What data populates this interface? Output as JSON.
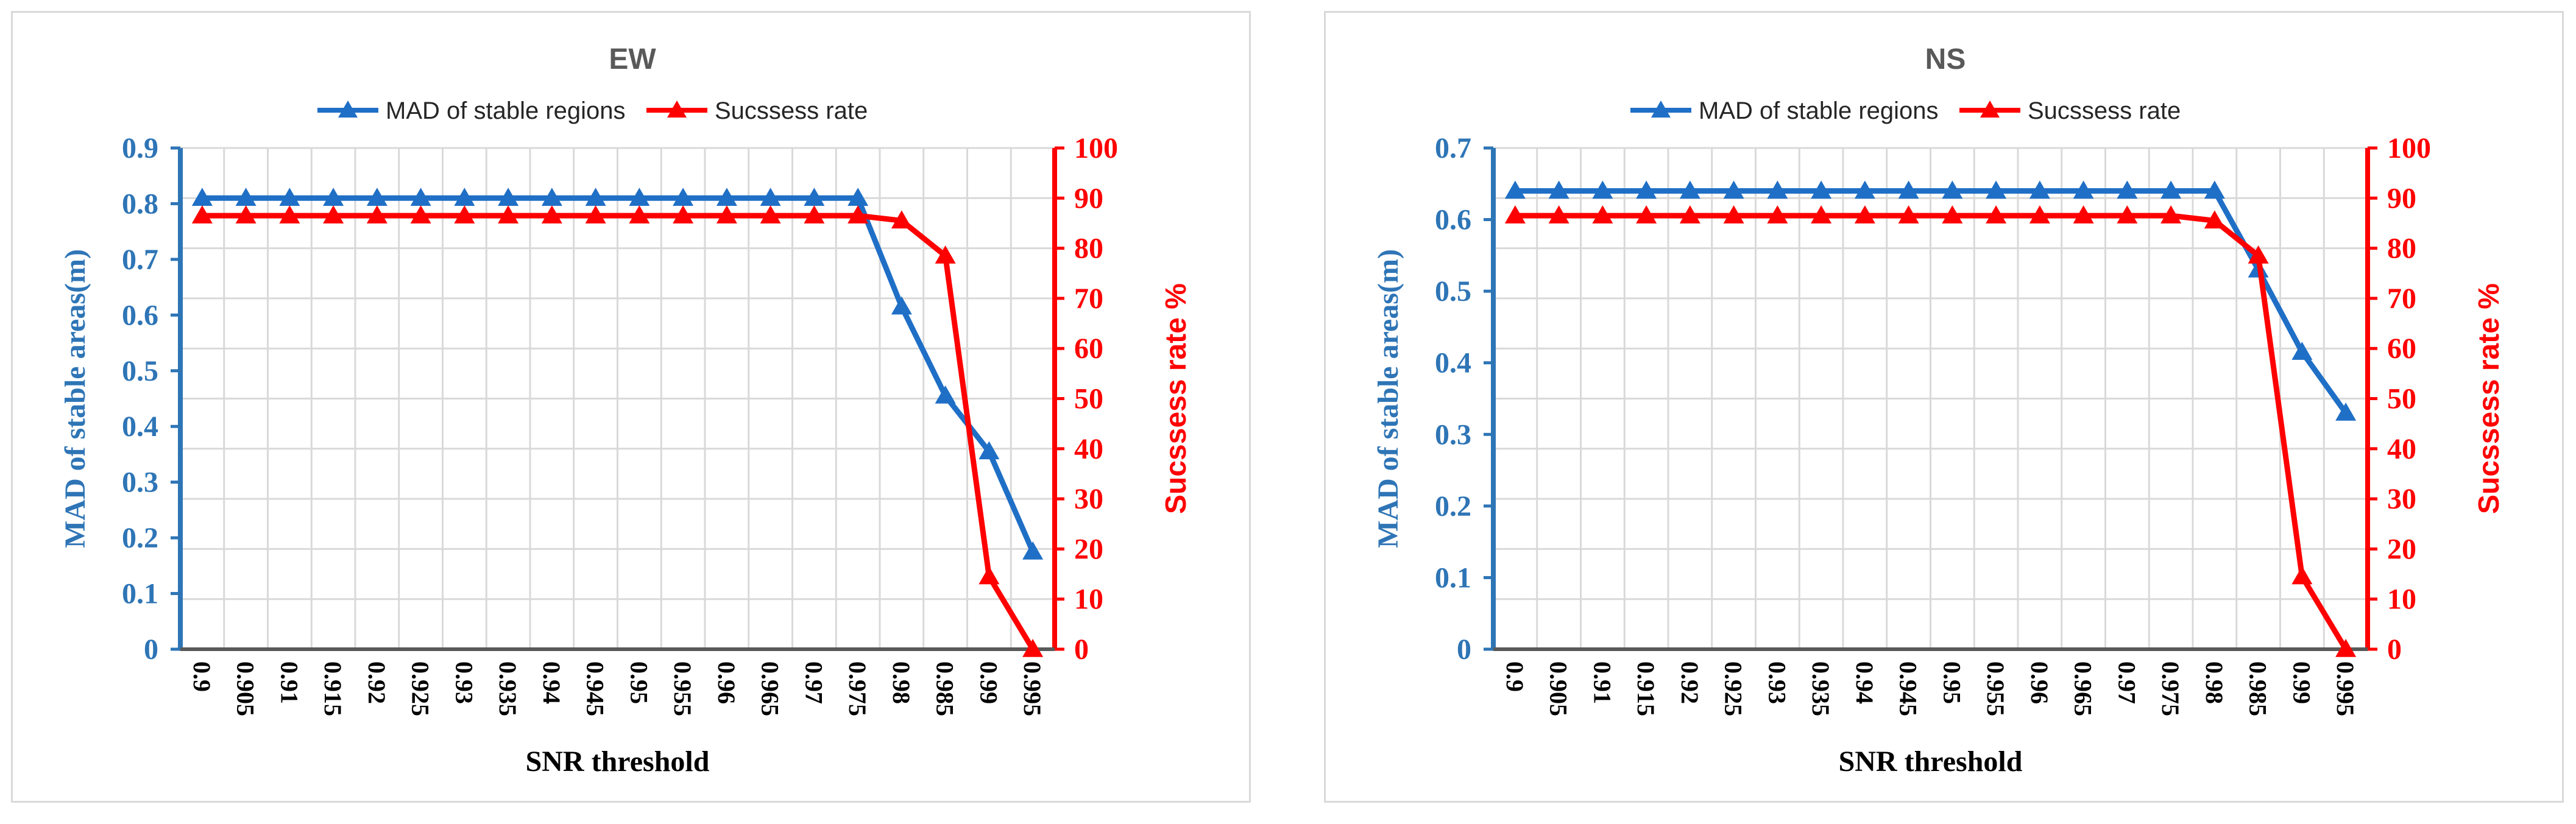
{
  "chart_data": [
    {
      "type": "line",
      "title": "EW",
      "xlabel": "SNR threshold",
      "ylabel_left": "MAD of stable areas(m)",
      "ylabel_right": "Sucssess rate %",
      "x": [
        "0.9",
        "0.905",
        "0.91",
        "0.915",
        "0.92",
        "0.925",
        "0.93",
        "0.935",
        "0.94",
        "0.945",
        "0.95",
        "0.955",
        "0.96",
        "0.965",
        "0.97",
        "0.975",
        "0.98",
        "0.985",
        "0.99",
        "0.995"
      ],
      "ylim_left": [
        0,
        0.9
      ],
      "yticks_left": [
        0,
        0.1,
        0.2,
        0.3,
        0.4,
        0.5,
        0.6,
        0.7,
        0.8,
        0.9
      ],
      "ylim_right": [
        0,
        100
      ],
      "yticks_right": [
        0,
        10,
        20,
        30,
        40,
        50,
        60,
        70,
        80,
        90,
        100
      ],
      "grid": true,
      "legend_position": "top",
      "series": [
        {
          "name": "MAD of stable regions",
          "axis": "left",
          "color": "#1f6fc6",
          "marker": "triangle",
          "values": [
            0.81,
            0.81,
            0.81,
            0.81,
            0.81,
            0.81,
            0.81,
            0.81,
            0.81,
            0.81,
            0.81,
            0.81,
            0.81,
            0.81,
            0.81,
            0.81,
            0.615,
            0.455,
            0.355,
            0.175
          ]
        },
        {
          "name": "Sucssess rate",
          "axis": "right",
          "color": "#ff0000",
          "marker": "triangle",
          "values": [
            86.5,
            86.5,
            86.5,
            86.5,
            86.5,
            86.5,
            86.5,
            86.5,
            86.5,
            86.5,
            86.5,
            86.5,
            86.5,
            86.5,
            86.5,
            86.5,
            85.5,
            78.5,
            14.5,
            0
          ]
        }
      ]
    },
    {
      "type": "line",
      "title": "NS",
      "xlabel": "SNR threshold",
      "ylabel_left": "MAD of stable areas(m)",
      "ylabel_right": "Sucssess rate %",
      "x": [
        "0.9",
        "0.905",
        "0.91",
        "0.915",
        "0.92",
        "0.925",
        "0.93",
        "0.935",
        "0.94",
        "0.945",
        "0.95",
        "0.955",
        "0.96",
        "0.965",
        "0.97",
        "0.975",
        "0.98",
        "0.985",
        "0.99",
        "0.995"
      ],
      "ylim_left": [
        0,
        0.7
      ],
      "yticks_left": [
        0,
        0.1,
        0.2,
        0.3,
        0.4,
        0.5,
        0.6,
        0.7
      ],
      "ylim_right": [
        0,
        100
      ],
      "yticks_right": [
        0,
        10,
        20,
        30,
        40,
        50,
        60,
        70,
        80,
        90,
        100
      ],
      "grid": true,
      "legend_position": "top",
      "series": [
        {
          "name": "MAD of stable regions",
          "axis": "left",
          "color": "#1f6fc6",
          "marker": "triangle",
          "values": [
            0.64,
            0.64,
            0.64,
            0.64,
            0.64,
            0.64,
            0.64,
            0.64,
            0.64,
            0.64,
            0.64,
            0.64,
            0.64,
            0.64,
            0.64,
            0.64,
            0.64,
            0.53,
            0.415,
            0.33
          ]
        },
        {
          "name": "Sucssess rate",
          "axis": "right",
          "color": "#ff0000",
          "marker": "triangle",
          "values": [
            86.5,
            86.5,
            86.5,
            86.5,
            86.5,
            86.5,
            86.5,
            86.5,
            86.5,
            86.5,
            86.5,
            86.5,
            86.5,
            86.5,
            86.5,
            86.5,
            85.5,
            78.5,
            14.5,
            0
          ]
        }
      ]
    }
  ]
}
